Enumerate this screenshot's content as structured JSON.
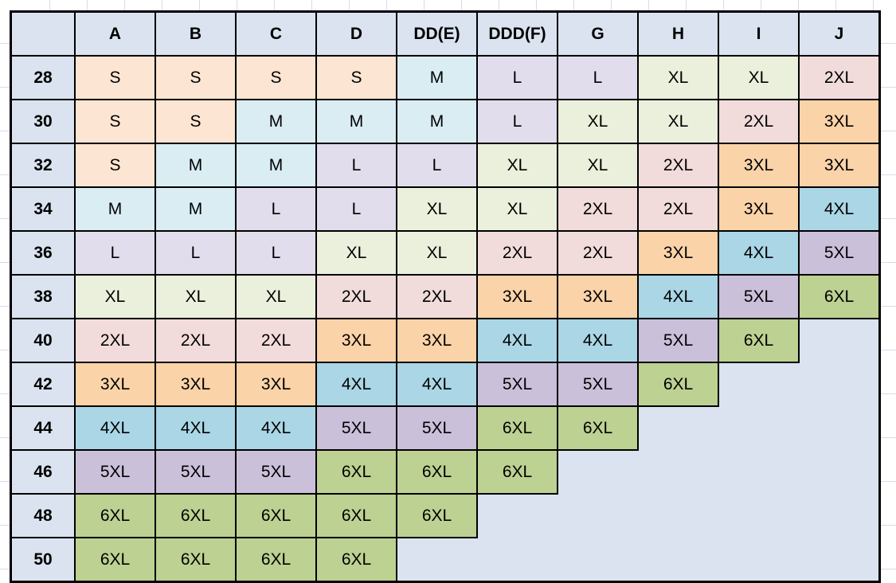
{
  "sheet": {
    "background_color": "#FFFFFF",
    "gridline_color": "#D5DDE8",
    "table_border_color": "#000000",
    "text_color": "#000000",
    "header_fill": "#DAE3EF",
    "empty_region_fill": "#DAE3EF"
  },
  "chart_data": {
    "type": "table",
    "description": "Band size (rows) by cup size (columns) garment size conversion chart",
    "corner_label": "",
    "columns": [
      "A",
      "B",
      "C",
      "D",
      "DD(E)",
      "DDD(F)",
      "G",
      "H",
      "I",
      "J"
    ],
    "row_labels": [
      "28",
      "30",
      "32",
      "34",
      "36",
      "38",
      "40",
      "42",
      "44",
      "46",
      "48",
      "50"
    ],
    "matrix": [
      [
        "S",
        "S",
        "S",
        "S",
        "M",
        "L",
        "L",
        "XL",
        "XL",
        "2XL"
      ],
      [
        "S",
        "S",
        "M",
        "M",
        "M",
        "L",
        "XL",
        "XL",
        "2XL",
        "3XL"
      ],
      [
        "S",
        "M",
        "M",
        "L",
        "L",
        "XL",
        "XL",
        "2XL",
        "3XL",
        "3XL"
      ],
      [
        "M",
        "M",
        "L",
        "L",
        "XL",
        "XL",
        "2XL",
        "2XL",
        "3XL",
        "4XL"
      ],
      [
        "L",
        "L",
        "L",
        "XL",
        "XL",
        "2XL",
        "2XL",
        "3XL",
        "4XL",
        "5XL"
      ],
      [
        "XL",
        "XL",
        "XL",
        "2XL",
        "2XL",
        "3XL",
        "3XL",
        "4XL",
        "5XL",
        "6XL"
      ],
      [
        "2XL",
        "2XL",
        "2XL",
        "3XL",
        "3XL",
        "4XL",
        "4XL",
        "5XL",
        "6XL",
        ""
      ],
      [
        "3XL",
        "3XL",
        "3XL",
        "4XL",
        "4XL",
        "5XL",
        "5XL",
        "6XL",
        "",
        ""
      ],
      [
        "4XL",
        "4XL",
        "4XL",
        "5XL",
        "5XL",
        "6XL",
        "6XL",
        "",
        "",
        ""
      ],
      [
        "5XL",
        "5XL",
        "5XL",
        "6XL",
        "6XL",
        "6XL",
        "",
        "",
        "",
        ""
      ],
      [
        "6XL",
        "6XL",
        "6XL",
        "6XL",
        "6XL",
        "",
        "",
        "",
        "",
        ""
      ],
      [
        "6XL",
        "6XL",
        "6XL",
        "6XL",
        "",
        "",
        "",
        "",
        "",
        ""
      ]
    ],
    "size_colors": {
      "S": "#FCE5D2",
      "M": "#D9EDF3",
      "L": "#E2DDEC",
      "XL": "#EAF0DB",
      "2XL": "#F1DCDB",
      "3XL": "#FBD3A8",
      "4XL": "#AAD6E6",
      "5XL": "#CBC0DA",
      "6XL": "#BDD192"
    }
  }
}
